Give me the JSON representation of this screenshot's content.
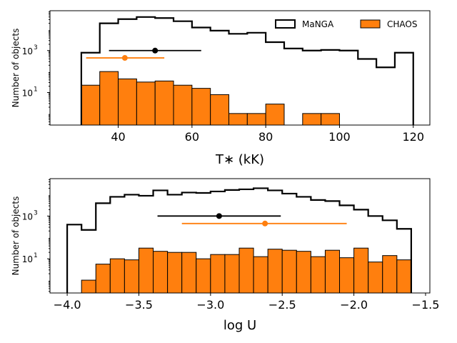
{
  "colors": {
    "manga": "#000000",
    "chaos": "#ff7f0e"
  },
  "chart_data": [
    {
      "type": "histogram",
      "ylabel": "Number of objects",
      "xlabel": "T∗ (kK)",
      "xlim": [
        21.5,
        124.5
      ],
      "ylog": true,
      "ylim_log10": [
        -0.55,
        4.9
      ],
      "xticks": [
        40,
        60,
        80,
        100,
        120
      ],
      "xtick_labels": [
        "40",
        "60",
        "80",
        "100",
        "120"
      ],
      "yticks_log10": [
        1,
        3
      ],
      "ytick_bases": [
        "10",
        "10"
      ],
      "ytick_exps": [
        "1",
        "3"
      ],
      "legend": {
        "position": "top-right",
        "entries": [
          "MaNGA",
          "CHAOS"
        ]
      },
      "bin_edges": [
        30,
        35,
        40,
        45,
        50,
        55,
        60,
        65,
        70,
        75,
        80,
        85,
        90,
        95,
        100,
        105,
        110,
        115,
        120
      ],
      "series": [
        {
          "name": "MaNGA",
          "style": "step",
          "log10_counts": [
            2.9,
            4.3,
            4.5,
            4.6,
            4.55,
            4.4,
            4.1,
            3.95,
            3.8,
            3.85,
            3.4,
            3.1,
            3.0,
            3.03,
            3.0,
            2.6,
            2.2,
            2.9
          ]
        },
        {
          "name": "CHAOS",
          "style": "filled",
          "log10_counts": [
            1.35,
            2.0,
            1.65,
            1.5,
            1.55,
            1.35,
            1.2,
            0.9,
            0.0,
            0.0,
            0.45,
            null,
            0.0,
            0.0,
            null,
            null,
            null,
            null
          ]
        }
      ],
      "errorbars": [
        {
          "name": "MaNGA",
          "x": 50,
          "xmin": 37.5,
          "xmax": 62.5,
          "log10_y": 3
        },
        {
          "name": "CHAOS",
          "x": 41.8,
          "xmin": 31.3,
          "xmax": 52.5,
          "log10_y": 2.65
        }
      ]
    },
    {
      "type": "histogram",
      "ylabel": "Number of objects",
      "xlabel": "log U",
      "xlim": [
        -4.12,
        -1.47
      ],
      "ylog": true,
      "ylim_log10": [
        -0.6,
        4.75
      ],
      "xticks": [
        -4.0,
        -3.5,
        -3.0,
        -2.5,
        -2.0,
        -1.5
      ],
      "xtick_labels": [
        "−4.0",
        "−3.5",
        "−3.0",
        "−2.5",
        "−2.0",
        "−1.5"
      ],
      "yticks_log10": [
        1,
        3
      ],
      "ytick_bases": [
        "10",
        "10"
      ],
      "ytick_exps": [
        "1",
        "3"
      ],
      "bin_edges": [
        -4.0,
        -3.9,
        -3.8,
        -3.7,
        -3.6,
        -3.5,
        -3.4,
        -3.3,
        -3.2,
        -3.1,
        -3.0,
        -2.9,
        -2.8,
        -2.7,
        -2.6,
        -2.5,
        -2.4,
        -2.3,
        -2.2,
        -2.1,
        -2.0,
        -1.9,
        -1.8,
        -1.7,
        -1.6
      ],
      "series": [
        {
          "name": "MaNGA",
          "style": "step",
          "log10_counts": [
            2.6,
            2.35,
            3.6,
            3.9,
            4.0,
            3.95,
            4.2,
            4.0,
            4.1,
            4.08,
            4.15,
            4.22,
            4.25,
            4.3,
            4.2,
            4.05,
            3.9,
            3.75,
            3.7,
            3.5,
            3.3,
            3.0,
            2.8,
            2.4
          ]
        },
        {
          "name": "CHAOS",
          "style": "filled",
          "log10_counts": [
            null,
            0.0,
            0.75,
            1.0,
            0.95,
            1.5,
            1.35,
            1.3,
            1.3,
            1.0,
            1.2,
            1.2,
            1.5,
            1.1,
            1.45,
            1.4,
            1.35,
            1.1,
            1.4,
            1.05,
            1.5,
            0.85,
            1.15,
            0.95
          ]
        }
      ],
      "errorbars": [
        {
          "name": "MaNGA",
          "x": -2.94,
          "xmin": -3.37,
          "xmax": -2.51,
          "log10_y": 3
        },
        {
          "name": "CHAOS",
          "x": -2.62,
          "xmin": -3.2,
          "xmax": -2.05,
          "log10_y": 2.65
        }
      ]
    }
  ]
}
